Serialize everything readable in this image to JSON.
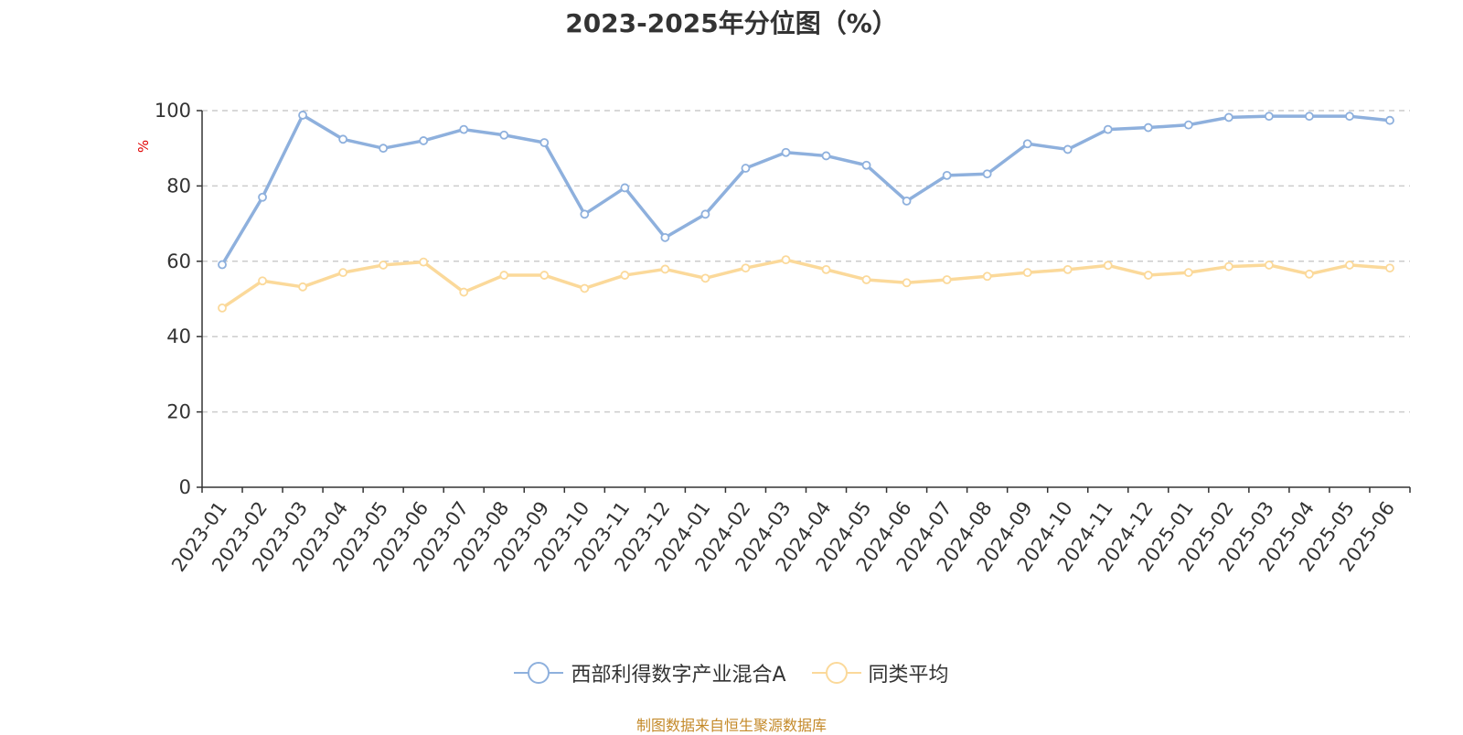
{
  "chart_data": {
    "type": "line",
    "title": "2023-2025年分位图（%）",
    "ylabel": "%",
    "xlabel": "",
    "ylim": [
      0,
      100
    ],
    "yticks": [
      0,
      20,
      40,
      60,
      80,
      100
    ],
    "grid": true,
    "legend_position": "bottom-center",
    "categories": [
      "2023-01",
      "2023-02",
      "2023-03",
      "2023-04",
      "2023-05",
      "2023-06",
      "2023-07",
      "2023-08",
      "2023-09",
      "2023-10",
      "2023-11",
      "2023-12",
      "2024-01",
      "2024-02",
      "2024-03",
      "2024-04",
      "2024-05",
      "2024-06",
      "2024-07",
      "2024-08",
      "2024-09",
      "2024-10",
      "2024-11",
      "2024-12",
      "2025-01",
      "2025-02",
      "2025-03",
      "2025-04",
      "2025-05",
      "2025-06"
    ],
    "series": [
      {
        "name": "西部利得数字产业混合A",
        "color": "#8eb0dd",
        "values": [
          59.1,
          77.0,
          98.8,
          92.4,
          90.0,
          92.0,
          95.0,
          93.5,
          91.5,
          72.5,
          79.5,
          66.3,
          72.5,
          84.7,
          88.9,
          88.0,
          85.5,
          76.0,
          82.8,
          83.2,
          91.2,
          89.7,
          95.0,
          95.5,
          96.2,
          98.2,
          98.5,
          98.5,
          98.5,
          97.4
        ]
      },
      {
        "name": "同类平均",
        "color": "#fbd99a",
        "values": [
          47.6,
          54.8,
          53.2,
          57.0,
          59.0,
          59.8,
          51.8,
          56.3,
          56.3,
          52.8,
          56.3,
          57.9,
          55.5,
          58.2,
          60.4,
          57.8,
          55.1,
          54.3,
          55.1,
          56.0,
          57.0,
          57.8,
          58.9,
          56.3,
          57.0,
          58.6,
          59.0,
          56.6,
          59.0,
          58.2
        ]
      }
    ]
  },
  "footer": {
    "source_note": "制图数据来自恒生聚源数据库"
  }
}
